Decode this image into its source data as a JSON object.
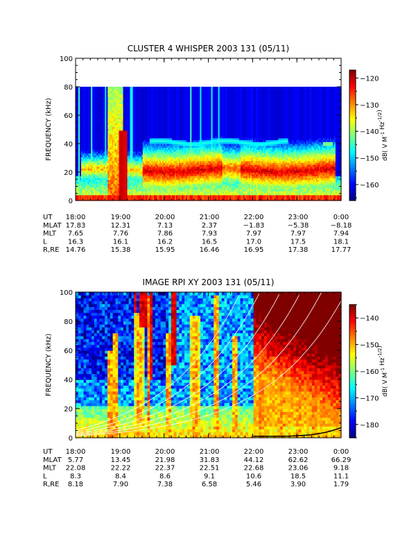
{
  "chart_data": [
    {
      "type": "heatmap",
      "title": "CLUSTER 4 WHISPER 2003 131 (05/11)",
      "ylabel": "FREQUENCY (kHz)",
      "ylim": [
        0,
        100
      ],
      "y_ticks": [
        "0",
        "20",
        "40",
        "60",
        "80",
        "100"
      ],
      "x_ticks": [
        "18:00",
        "19:00",
        "20:00",
        "21:00",
        "22:00",
        "23:00",
        "0:00"
      ],
      "data_top_khz": 80,
      "colorbar": {
        "label": "dB( V M<sup>-1</sup> Hz<sup>-1/2</sup>)",
        "range": [
          -166,
          -117
        ],
        "ticks": [
          "-120",
          "-130",
          "-140",
          "-150",
          "-160"
        ],
        "tick_values": [
          -120,
          -130,
          -140,
          -150,
          -160
        ]
      },
      "ephemeris": [
        {
          "label": "UT",
          "values": [
            "18:00",
            "19:00",
            "20:00",
            "21:00",
            "22:00",
            "23:00",
            "0:00"
          ]
        },
        {
          "label": "MLAT",
          "values": [
            "17.83",
            "12.31",
            "7.13",
            "2.37",
            "−1.83",
            "−5.38",
            "−8.18"
          ]
        },
        {
          "label": "MLT",
          "values": [
            "7.65",
            "7.76",
            "7.86",
            "7.93",
            "7.97",
            "7.97",
            "7.94"
          ]
        },
        {
          "label": "L",
          "values": [
            "16.3",
            "16.1",
            "16.2",
            "16.5",
            "17.0",
            "17.5",
            "18.1"
          ]
        },
        {
          "label": "R,RE",
          "values": [
            "14.76",
            "15.38",
            "15.95",
            "16.46",
            "16.95",
            "17.38",
            "17.77"
          ]
        }
      ],
      "features": {
        "background_level_db": -160,
        "emission_band_khz": [
          18,
          26
        ],
        "emission_band_level_db": -122,
        "narrowband_line_khz": 41,
        "narrowband_line_level_db": -145
      }
    },
    {
      "type": "heatmap",
      "title": "IMAGE RPI XY 2003 131 (05/11)",
      "ylabel": "FREQUENCY (kHz)",
      "ylim": [
        0,
        100
      ],
      "y_ticks": [
        "0",
        "20",
        "40",
        "60",
        "80",
        "100"
      ],
      "x_ticks": [
        "18:00",
        "19:00",
        "20:00",
        "21:00",
        "22:00",
        "23:00",
        "0:00"
      ],
      "data_top_khz": 100,
      "colorbar": {
        "label": "dB( V M<sup>-1</sup> Hz<sup>-1/2</sup>)",
        "range": [
          -185,
          -135
        ],
        "ticks": [
          "-140",
          "-150",
          "-160",
          "-170",
          "-180"
        ],
        "tick_values": [
          -140,
          -150,
          -160,
          -170,
          -180
        ]
      },
      "ephemeris": [
        {
          "label": "UT",
          "values": [
            "18:00",
            "19:00",
            "20:00",
            "21:00",
            "22:00",
            "23:00",
            "0:00"
          ]
        },
        {
          "label": "MLAT",
          "values": [
            "5.77",
            "13.45",
            "21.98",
            "31.83",
            "44.12",
            "62.62",
            "66.29"
          ]
        },
        {
          "label": "MLT",
          "values": [
            "22.08",
            "22.22",
            "22.37",
            "22.51",
            "22.68",
            "23.06",
            "9.18"
          ]
        },
        {
          "label": "L",
          "values": [
            "8.3",
            "8.4",
            "8.6",
            "9.1",
            "10.6",
            "18.5",
            "11.1"
          ]
        },
        {
          "label": "R,RE",
          "values": [
            "8.18",
            "7.90",
            "7.38",
            "6.58",
            "5.46",
            "3.90",
            "1.79"
          ]
        }
      ],
      "features": {
        "background_level_db": -168,
        "intense_region_start": "22:00",
        "intense_region_level_db": -138,
        "overlay_curves": "white frequency curves"
      }
    }
  ]
}
